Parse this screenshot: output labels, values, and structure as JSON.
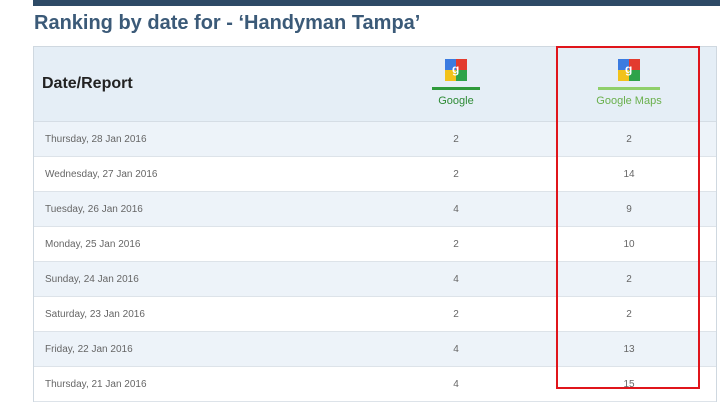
{
  "header": {
    "title": "Ranking by date for - ‘Handyman Tampa’"
  },
  "table": {
    "columns": [
      "Date/Report",
      "Google",
      "Google Maps"
    ],
    "rows": [
      [
        "Thursday, 28 Jan 2016",
        2,
        2
      ],
      [
        "Wednesday, 27 Jan 2016",
        2,
        14
      ],
      [
        "Tuesday, 26 Jan 2016",
        4,
        9
      ],
      [
        "Monday, 25 Jan 2016",
        2,
        10
      ],
      [
        "Sunday, 24 Jan 2016",
        4,
        2
      ],
      [
        "Saturday, 23 Jan 2016",
        2,
        2
      ],
      [
        "Friday, 22 Jan 2016",
        4,
        13
      ],
      [
        "Thursday, 21 Jan 2016",
        4,
        15
      ]
    ]
  }
}
